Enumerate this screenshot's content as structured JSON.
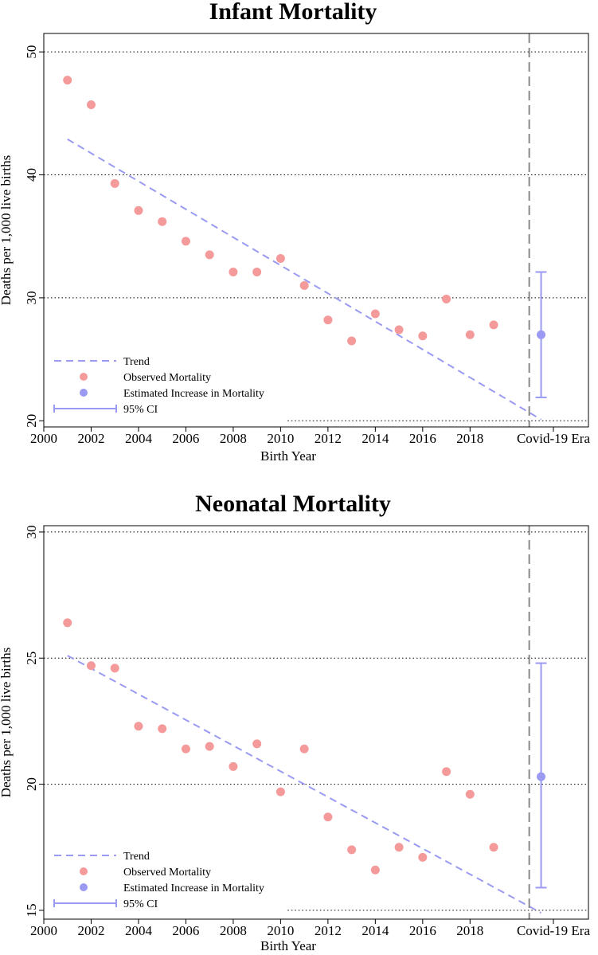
{
  "colors": {
    "observed": "#f49a9a",
    "estimate": "#9a9af2",
    "trend": "#9a9af2",
    "ci": "#9a9af2",
    "era_line": "#888888",
    "grid": "#000000",
    "frame": "#000000"
  },
  "chart_data": [
    {
      "type": "scatter",
      "title": "Infant Mortality",
      "xlabel": "Birth Year",
      "ylabel": "Deaths per 1,000 live births",
      "xlim": [
        2000,
        2023
      ],
      "ylim": [
        19.5,
        51.5
      ],
      "x_ticks": [
        2000,
        2002,
        2004,
        2006,
        2008,
        2010,
        2012,
        2014,
        2016,
        2018
      ],
      "x_tick_labels": [
        "2000",
        "2002",
        "2004",
        "2006",
        "2008",
        "2010",
        "2012",
        "2014",
        "2016",
        "2018"
      ],
      "era_label": "Covid-19 Era",
      "era_divider_x": 2020.5,
      "y_ticks": [
        20,
        30,
        40,
        50
      ],
      "y_tick_labels": [
        "20",
        "30",
        "40",
        "50"
      ],
      "grid": "horizontal-dotted",
      "series": [
        {
          "name": "Observed Mortality",
          "x": [
            2001,
            2002,
            2003,
            2004,
            2005,
            2006,
            2007,
            2008,
            2009,
            2010,
            2011,
            2012,
            2013,
            2014,
            2015,
            2016,
            2017,
            2018,
            2019
          ],
          "values": [
            47.7,
            45.7,
            39.3,
            37.1,
            36.2,
            34.6,
            33.5,
            32.1,
            32.1,
            33.2,
            31.0,
            28.2,
            26.5,
            28.7,
            27.4,
            26.9,
            29.9,
            27.0,
            27.8
          ]
        }
      ],
      "trend": {
        "name": "Trend",
        "x": [
          2001,
          2021
        ],
        "values": [
          42.9,
          20.1
        ]
      },
      "estimate": {
        "name": "Estimated Increase in Mortality",
        "x": 2021,
        "value": 27.0,
        "ci_name": "95% CI",
        "ci": [
          21.9,
          32.1
        ]
      },
      "legend": {
        "position": "bottom-left",
        "entries": [
          "Trend",
          "Observed Mortality",
          "Estimated Increase in Mortality",
          "95% CI"
        ]
      }
    },
    {
      "type": "scatter",
      "title": "Neonatal Mortality",
      "xlabel": "Birth Year",
      "ylabel": "Deaths per 1,000 live births",
      "xlim": [
        2000,
        2023
      ],
      "ylim": [
        14.65,
        30.25
      ],
      "x_ticks": [
        2000,
        2002,
        2004,
        2006,
        2008,
        2010,
        2012,
        2014,
        2016,
        2018
      ],
      "x_tick_labels": [
        "2000",
        "2002",
        "2004",
        "2006",
        "2008",
        "2010",
        "2012",
        "2014",
        "2016",
        "2018"
      ],
      "era_label": "Covid-19 Era",
      "era_divider_x": 2020.5,
      "y_ticks": [
        15,
        20,
        25,
        30
      ],
      "y_tick_labels": [
        "15",
        "20",
        "25",
        "30"
      ],
      "grid": "horizontal-dotted",
      "series": [
        {
          "name": "Observed Mortality",
          "x": [
            2001,
            2002,
            2003,
            2004,
            2005,
            2006,
            2007,
            2008,
            2009,
            2010,
            2011,
            2012,
            2013,
            2014,
            2015,
            2016,
            2017,
            2018,
            2019
          ],
          "values": [
            26.4,
            24.7,
            24.6,
            22.3,
            22.2,
            21.4,
            21.5,
            20.7,
            21.6,
            19.7,
            21.4,
            18.7,
            17.4,
            16.6,
            17.5,
            17.1,
            20.5,
            19.6,
            17.5
          ]
        }
      ],
      "trend": {
        "name": "Trend",
        "x": [
          2001,
          2021
        ],
        "values": [
          25.1,
          14.9
        ]
      },
      "estimate": {
        "name": "Estimated Increase in Mortality",
        "x": 2021,
        "value": 20.3,
        "ci_name": "95% CI",
        "ci": [
          15.9,
          24.8
        ]
      },
      "legend": {
        "position": "bottom-left",
        "entries": [
          "Trend",
          "Observed Mortality",
          "Estimated Increase in Mortality",
          "95% CI"
        ]
      }
    }
  ]
}
